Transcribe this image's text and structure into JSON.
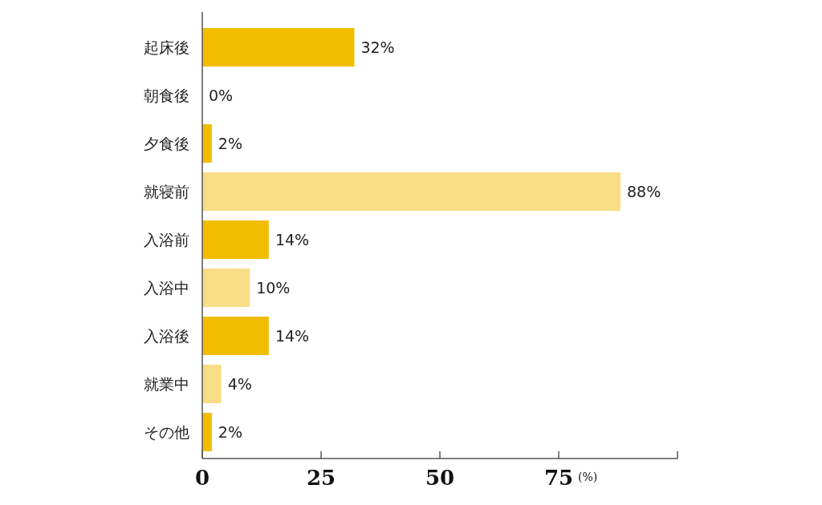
{
  "chart_data": {
    "type": "bar",
    "orientation": "horizontal",
    "categories": [
      "起床後",
      "朝食後",
      "夕食後",
      "就寝前",
      "入浴前",
      "入浴中",
      "入浴後",
      "就業中",
      "その他"
    ],
    "values": [
      32,
      0,
      2,
      88,
      14,
      10,
      14,
      4,
      2
    ],
    "colors": [
      "#f2bd00",
      "#f7dd85",
      "#f2bd00",
      "#f7dd85",
      "#f2bd00",
      "#f7dd85",
      "#f2bd00",
      "#f7dd85",
      "#f2bd00"
    ],
    "value_labels": [
      "32%",
      "0%",
      "2%",
      "88%",
      "14%",
      "10%",
      "14%",
      "4%",
      "2%"
    ],
    "xlabel": "(%)",
    "xlim": [
      0,
      100
    ],
    "xticks": [
      0,
      25,
      50,
      75,
      {
        "value": 100,
        "label": null
      }
    ],
    "grid": false
  }
}
